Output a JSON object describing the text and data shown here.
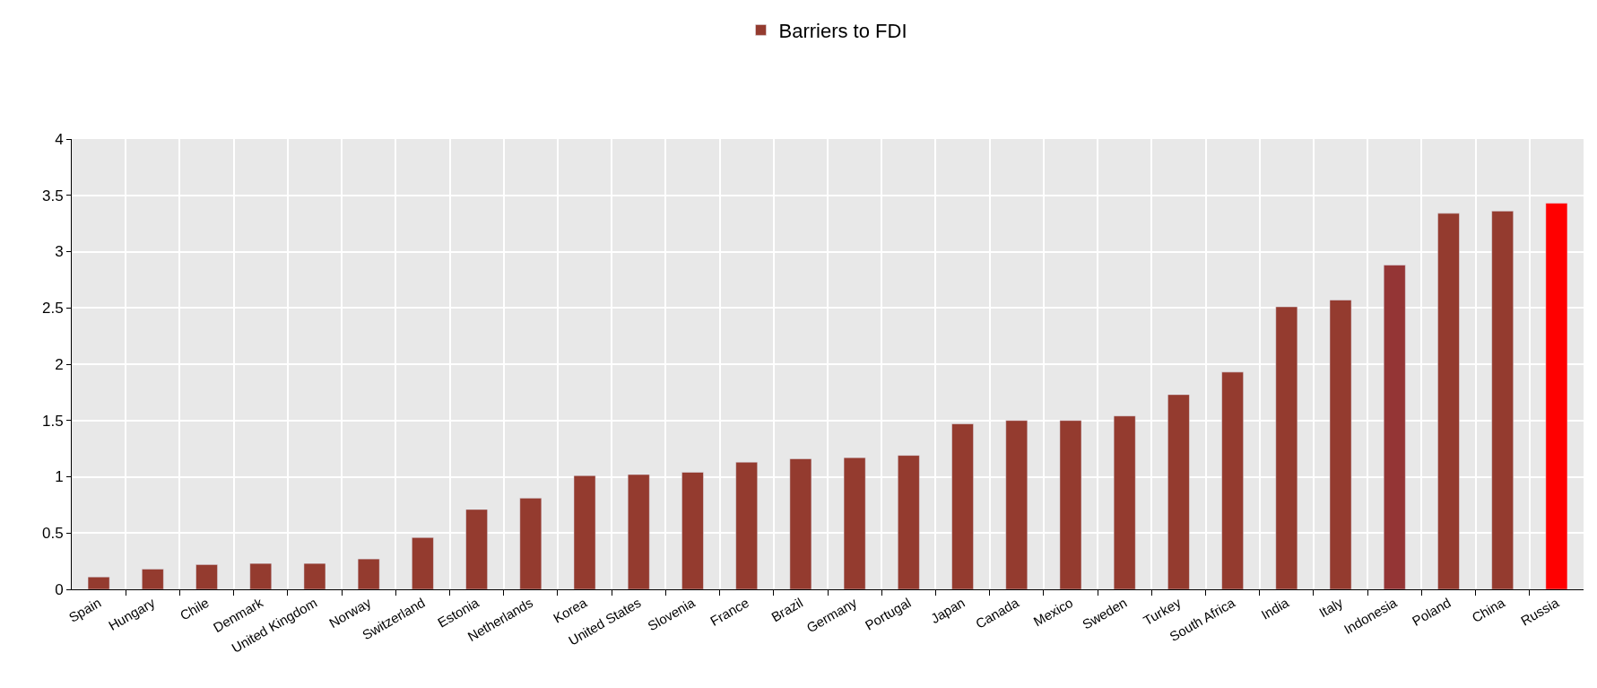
{
  "chart_data": {
    "type": "bar",
    "categories": [
      "Spain",
      "Hungary",
      "Chile",
      "Denmark",
      "United Kingdom",
      "Norway",
      "Switzerland",
      "Estonia",
      "Netherlands",
      "Korea",
      "United States",
      "Slovenia",
      "France",
      "Brazil",
      "Germany",
      "Portugal",
      "Japan",
      "Canada",
      "Mexico",
      "Sweden",
      "Turkey",
      "South Africa",
      "India",
      "Italy",
      "Indonesia",
      "Poland",
      "China",
      "Russia"
    ],
    "series": [
      {
        "name": "Barriers to FDI",
        "color": "#943b2f",
        "colors": [
          "#943b2f",
          "#943b2f",
          "#943b2f",
          "#943b2f",
          "#943b2f",
          "#943b2f",
          "#943b2f",
          "#943b2f",
          "#943b2f",
          "#943b2f",
          "#943b2f",
          "#943b2f",
          "#943b2f",
          "#943b2f",
          "#943b2f",
          "#943b2f",
          "#943b2f",
          "#943b2f",
          "#943b2f",
          "#943b2f",
          "#943b2f",
          "#943b2f",
          "#943b2f",
          "#943b2f",
          "#943535",
          "#943b2f",
          "#943b2f",
          "#ff0000"
        ],
        "values": [
          0.11,
          0.18,
          0.22,
          0.23,
          0.23,
          0.27,
          0.46,
          0.71,
          0.81,
          1.01,
          1.02,
          1.04,
          1.13,
          1.16,
          1.17,
          1.19,
          1.47,
          1.5,
          1.5,
          1.54,
          1.73,
          1.93,
          2.51,
          2.57,
          2.88,
          3.34,
          3.36,
          3.43
        ]
      }
    ],
    "ylim": [
      0,
      4
    ],
    "yticks": [
      0,
      0.5,
      1,
      1.5,
      2,
      2.5,
      3,
      3.5,
      4
    ],
    "grid": true,
    "legend": "top"
  }
}
